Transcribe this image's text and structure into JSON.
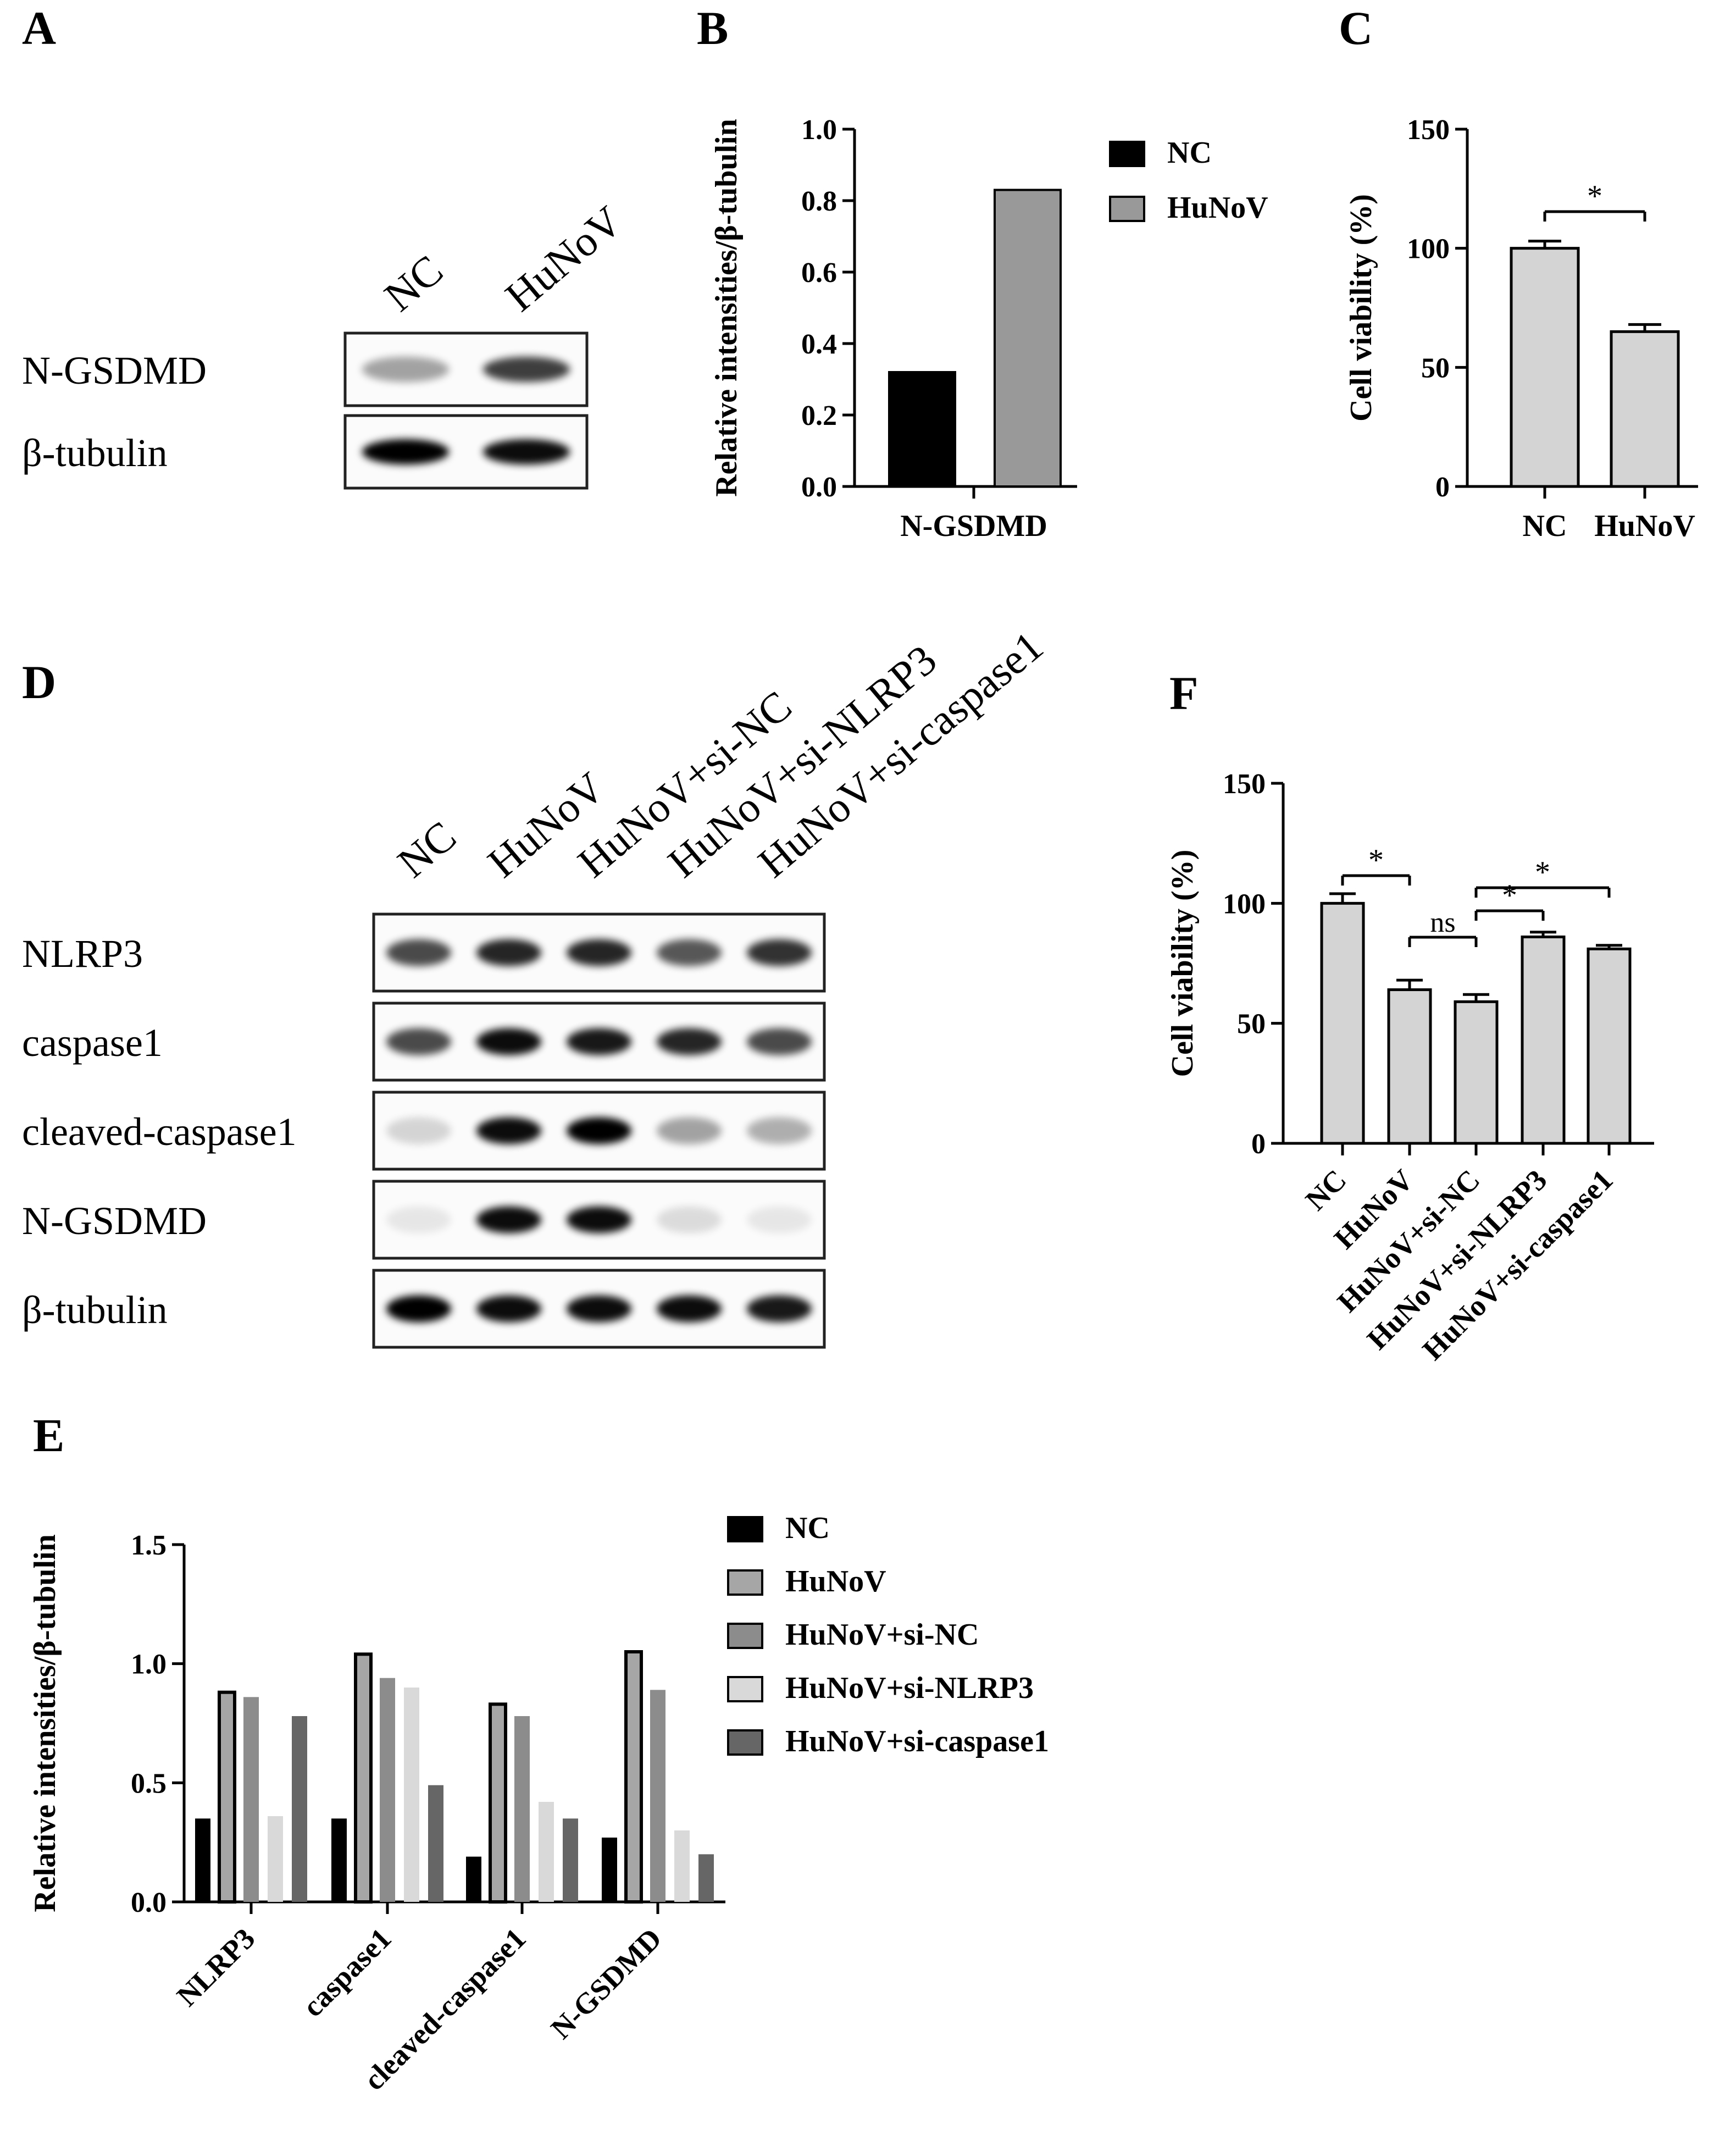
{
  "panels": {
    "A": {
      "label": "A",
      "lanes": [
        "NC",
        "HuNoV"
      ],
      "rows": [
        {
          "name": "N-GSDMD",
          "intensities": [
            0.35,
            0.75
          ]
        },
        {
          "name": "β-tubulin",
          "intensities": [
            1.0,
            0.95
          ]
        }
      ]
    },
    "B": {
      "label": "B",
      "chart_data": {
        "type": "bar",
        "categories": [
          "N-GSDMD"
        ],
        "series": [
          {
            "name": "NC",
            "values": [
              0.32
            ],
            "color": "#000000"
          },
          {
            "name": "HuNoV",
            "values": [
              0.83
            ],
            "color": "#999999"
          }
        ],
        "xlabel": "",
        "ylabel": "Relative intensities/β-tubulin",
        "ylim": [
          0,
          1.0
        ],
        "yticks": [
          "0.0",
          "0.2",
          "0.4",
          "0.6",
          "0.8",
          "1.0"
        ],
        "legend": "right"
      }
    },
    "C": {
      "label": "C",
      "chart_data": {
        "type": "bar",
        "categories": [
          "NC",
          "HuNoV"
        ],
        "values": [
          100,
          65
        ],
        "errors": [
          3,
          3
        ],
        "ylabel": "Cell viability (%)",
        "ylim": [
          0,
          150
        ],
        "yticks": [
          "0",
          "50",
          "100",
          "150"
        ],
        "bar_color": "#d4d4d4",
        "significance": [
          {
            "from": 0,
            "to": 1,
            "label": "*"
          }
        ]
      }
    },
    "D": {
      "label": "D",
      "lanes": [
        "NC",
        "HuNoV",
        "HuNoV+si-NC",
        "HuNoV+si-NLRP3",
        "HuNoV+si-caspase1"
      ],
      "rows": [
        {
          "name": "NLRP3",
          "intensities": [
            0.7,
            0.85,
            0.85,
            0.65,
            0.8
          ]
        },
        {
          "name": "caspase1",
          "intensities": [
            0.7,
            0.95,
            0.9,
            0.85,
            0.7
          ]
        },
        {
          "name": "cleaved-caspase1",
          "intensities": [
            0.15,
            0.95,
            1.0,
            0.35,
            0.3
          ]
        },
        {
          "name": "N-GSDMD",
          "intensities": [
            0.08,
            0.95,
            0.95,
            0.12,
            0.08
          ]
        },
        {
          "name": "β-tubulin",
          "intensities": [
            1.0,
            0.95,
            0.95,
            0.95,
            0.9
          ]
        }
      ]
    },
    "E": {
      "label": "E",
      "chart_data": {
        "type": "bar",
        "categories": [
          "NLRP3",
          "caspase1",
          "cleaved-caspase1",
          "N-GSDMD"
        ],
        "series": [
          {
            "name": "NC",
            "values": [
              0.35,
              0.35,
              0.19,
              0.27
            ],
            "color": "#000000"
          },
          {
            "name": "HuNoV",
            "values": [
              0.88,
              1.04,
              0.83,
              1.05
            ],
            "color": "#a6a6a6"
          },
          {
            "name": "HuNoV+si-NC",
            "values": [
              0.86,
              0.94,
              0.78,
              0.89
            ],
            "color": "#8c8c8c"
          },
          {
            "name": "HuNoV+si-NLRP3",
            "values": [
              0.36,
              0.9,
              0.42,
              0.3
            ],
            "color": "#d9d9d9"
          },
          {
            "name": "HuNoV+si-caspase1",
            "values": [
              0.78,
              0.49,
              0.35,
              0.2
            ],
            "color": "#666666"
          }
        ],
        "ylabel": "Relative intensities/β-tubulin",
        "ylim": [
          0,
          1.5
        ],
        "yticks": [
          "0.0",
          "0.5",
          "1.0",
          "1.5"
        ],
        "legend": "right"
      }
    },
    "F": {
      "label": "F",
      "chart_data": {
        "type": "bar",
        "categories": [
          "NC",
          "HuNoV",
          "HuNoV+si-NC",
          "HuNoV+si-NLRP3",
          "HuNoV+si-caspase1"
        ],
        "values": [
          100,
          64,
          59,
          86,
          81
        ],
        "errors": [
          4,
          4,
          3,
          2,
          1.5
        ],
        "ylabel": "Cell viability (%)",
        "ylim": [
          0,
          150
        ],
        "yticks": [
          "0",
          "50",
          "100",
          "150"
        ],
        "bar_color": "#d4d4d4",
        "significance": [
          {
            "from": 0,
            "to": 1,
            "label": "*"
          },
          {
            "from": 1,
            "to": 2,
            "label": "ns"
          },
          {
            "from": 2,
            "to": 3,
            "label": "*"
          },
          {
            "from": 2,
            "to": 4,
            "label": "*"
          }
        ]
      }
    }
  }
}
